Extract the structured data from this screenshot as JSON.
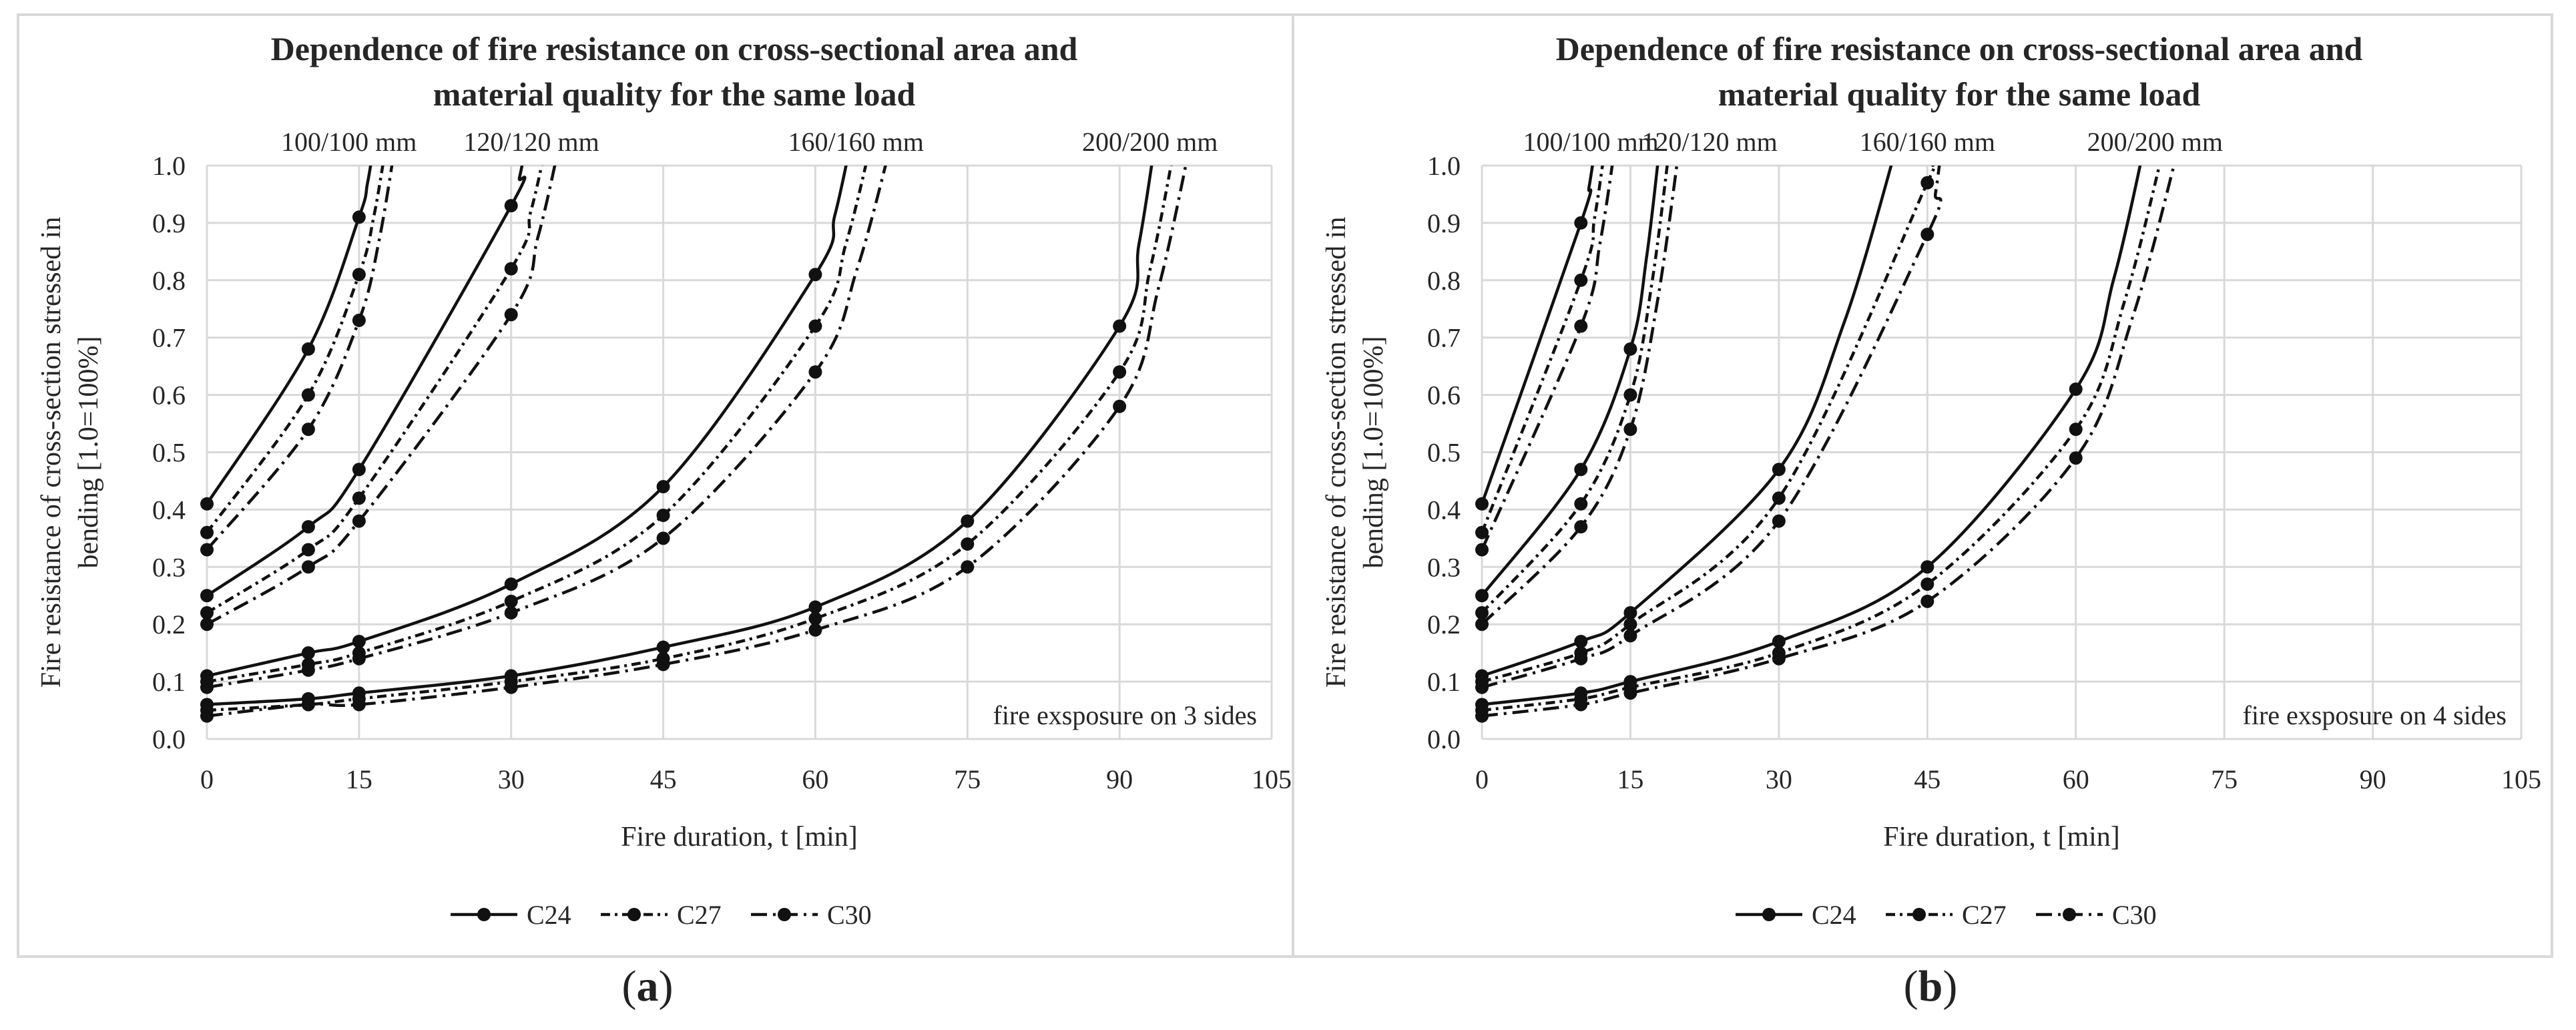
{
  "chart_data": [
    {
      "type": "line",
      "panel_label": "a",
      "title_line1": "Dependence of fire resistance on cross-sectional area and",
      "title_line2": "material quality for the same load",
      "xlabel": "Fire duration, t [min]",
      "ylabel_line1": "Fire resistance of cross-section stressed in",
      "ylabel_line2": "bending [1.0=100%]",
      "xlim": [
        0,
        105
      ],
      "ylim": [
        0,
        1.0
      ],
      "x_ticks": [
        "0",
        "15",
        "30",
        "45",
        "60",
        "75",
        "90",
        "105"
      ],
      "y_ticks": [
        "0.0",
        "0.1",
        "0.2",
        "0.3",
        "0.4",
        "0.5",
        "0.6",
        "0.7",
        "0.8",
        "0.9",
        "1.0"
      ],
      "annotation": "fire exsposure on 3 sides",
      "legend": [
        "C24",
        "C27",
        "C30"
      ],
      "groups": [
        {
          "label": "100/100 mm",
          "label_x": 14,
          "series": [
            {
              "name": "C24",
              "x": [
                0,
                10,
                15
              ],
              "y": [
                0.41,
                0.68,
                0.91
              ],
              "end_x": 16.5
            },
            {
              "name": "C27",
              "x": [
                0,
                10,
                15
              ],
              "y": [
                0.36,
                0.6,
                0.81
              ],
              "end_x": 17.7
            },
            {
              "name": "C30",
              "x": [
                0,
                10,
                15
              ],
              "y": [
                0.33,
                0.54,
                0.73
              ],
              "end_x": 18.6
            }
          ]
        },
        {
          "label": "120/120 mm",
          "label_x": 32,
          "series": [
            {
              "name": "C24",
              "x": [
                0,
                10,
                15,
                30
              ],
              "y": [
                0.25,
                0.37,
                0.47,
                0.93
              ],
              "end_x": 31.5
            },
            {
              "name": "C27",
              "x": [
                0,
                10,
                15,
                30
              ],
              "y": [
                0.22,
                0.33,
                0.42,
                0.82
              ],
              "end_x": 33.5
            },
            {
              "name": "C30",
              "x": [
                0,
                10,
                15,
                30
              ],
              "y": [
                0.2,
                0.3,
                0.38,
                0.74
              ],
              "end_x": 34.8
            }
          ]
        },
        {
          "label": "160/160 mm",
          "label_x": 64,
          "series": [
            {
              "name": "C24",
              "x": [
                0,
                10,
                15,
                30,
                45,
                60
              ],
              "y": [
                0.11,
                0.15,
                0.17,
                0.27,
                0.44,
                0.81
              ],
              "end_x": 63.5
            },
            {
              "name": "C27",
              "x": [
                0,
                10,
                15,
                30,
                45,
                60
              ],
              "y": [
                0.1,
                0.13,
                0.15,
                0.24,
                0.39,
                0.72
              ],
              "end_x": 65.5
            },
            {
              "name": "C30",
              "x": [
                0,
                10,
                15,
                30,
                45,
                60
              ],
              "y": [
                0.09,
                0.12,
                0.14,
                0.22,
                0.35,
                0.64
              ],
              "end_x": 67.5
            }
          ]
        },
        {
          "label": "200/200 mm",
          "label_x": 93,
          "series": [
            {
              "name": "C24",
              "x": [
                0,
                10,
                15,
                30,
                45,
                60,
                75,
                90
              ],
              "y": [
                0.06,
                0.07,
                0.08,
                0.11,
                0.16,
                0.23,
                0.38,
                0.72
              ],
              "end_x": 93.5
            },
            {
              "name": "C27",
              "x": [
                0,
                10,
                15,
                30,
                45,
                60,
                75,
                90
              ],
              "y": [
                0.05,
                0.06,
                0.07,
                0.1,
                0.14,
                0.21,
                0.34,
                0.64
              ],
              "end_x": 95.5
            },
            {
              "name": "C30",
              "x": [
                0,
                10,
                15,
                30,
                45,
                60,
                75,
                90
              ],
              "y": [
                0.04,
                0.06,
                0.06,
                0.09,
                0.13,
                0.19,
                0.3,
                0.58
              ],
              "end_x": 97.0
            }
          ]
        }
      ]
    },
    {
      "type": "line",
      "panel_label": "b",
      "title_line1": "Dependence of fire resistance on cross-sectional area and",
      "title_line2": "material quality for the same load",
      "xlabel": "Fire duration, t [min]",
      "ylabel_line1": "Fire resistance of cross-section stressed in",
      "ylabel_line2": "bending [1.0=100%]",
      "xlim": [
        0,
        105
      ],
      "ylim": [
        0,
        1.0
      ],
      "x_ticks": [
        "0",
        "15",
        "30",
        "45",
        "60",
        "75",
        "90",
        "105"
      ],
      "y_ticks": [
        "0.0",
        "0.1",
        "0.2",
        "0.3",
        "0.4",
        "0.5",
        "0.6",
        "0.7",
        "0.8",
        "0.9",
        "1.0"
      ],
      "annotation": "fire exsposure on 4 sides",
      "legend": [
        "C24",
        "C27",
        "C30"
      ],
      "groups": [
        {
          "label": "100/100 mm",
          "label_x": 11,
          "series": [
            {
              "name": "C24",
              "x": [
                0,
                10
              ],
              "y": [
                0.41,
                0.9
              ],
              "end_x": 11.5
            },
            {
              "name": "C27",
              "x": [
                0,
                10
              ],
              "y": [
                0.36,
                0.8
              ],
              "end_x": 12.5
            },
            {
              "name": "C30",
              "x": [
                0,
                10
              ],
              "y": [
                0.33,
                0.72
              ],
              "end_x": 13.5
            }
          ]
        },
        {
          "label": "120/120 mm",
          "label_x": 23,
          "series": [
            {
              "name": "C24",
              "x": [
                0,
                10,
                15
              ],
              "y": [
                0.25,
                0.47,
                0.68
              ],
              "end_x": 18.0
            },
            {
              "name": "C27",
              "x": [
                0,
                10,
                15
              ],
              "y": [
                0.22,
                0.41,
                0.6
              ],
              "end_x": 19.0
            },
            {
              "name": "C30",
              "x": [
                0,
                10,
                15
              ],
              "y": [
                0.2,
                0.37,
                0.54
              ],
              "end_x": 20.0
            }
          ]
        },
        {
          "label": "160/160 mm",
          "label_x": 45,
          "series": [
            {
              "name": "C24",
              "x": [
                0,
                10,
                15,
                30
              ],
              "y": [
                0.11,
                0.17,
                0.22,
                0.47
              ],
              "end_x": 42.0
            },
            {
              "name": "C27",
              "x": [
                0,
                10,
                15,
                30,
                45
              ],
              "y": [
                0.1,
                0.15,
                0.2,
                0.42,
                0.97
              ],
              "end_x": 46.0
            },
            {
              "name": "C30",
              "x": [
                0,
                10,
                15,
                30,
                45
              ],
              "y": [
                0.09,
                0.14,
                0.18,
                0.38,
                0.88
              ],
              "end_x": 46.5
            }
          ]
        },
        {
          "label": "200/200 mm",
          "label_x": 68,
          "series": [
            {
              "name": "C24",
              "x": [
                0,
                10,
                15,
                30,
                45,
                60
              ],
              "y": [
                0.06,
                0.08,
                0.1,
                0.17,
                0.3,
                0.61
              ],
              "end_x": 67.0
            },
            {
              "name": "C27",
              "x": [
                0,
                10,
                15,
                30,
                45,
                60
              ],
              "y": [
                0.05,
                0.07,
                0.09,
                0.15,
                0.27,
                0.54
              ],
              "end_x": 69.0
            },
            {
              "name": "C30",
              "x": [
                0,
                10,
                15,
                30,
                45,
                60
              ],
              "y": [
                0.04,
                0.06,
                0.08,
                0.14,
                0.24,
                0.49
              ],
              "end_x": 70.5
            }
          ]
        }
      ]
    }
  ]
}
